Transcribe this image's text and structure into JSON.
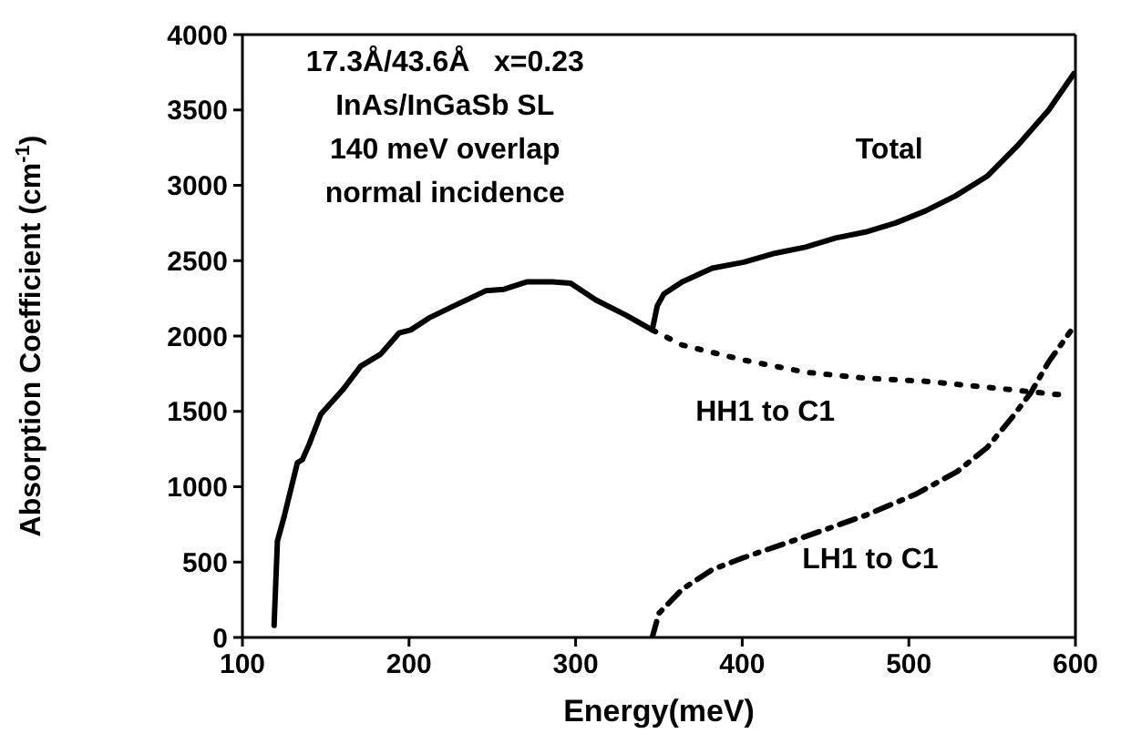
{
  "chart_data": {
    "type": "line",
    "xlabel": "Energy(meV)",
    "ylabel": "Absorption Coefficient (cm$^{-1}$)",
    "xlim": [
      100,
      600
    ],
    "xticks": [
      100,
      200,
      300,
      400,
      500,
      600
    ],
    "ylim": [
      0,
      4000
    ],
    "yticks": [
      0,
      500,
      1000,
      1500,
      2000,
      2500,
      3000,
      3500,
      4000
    ],
    "marker": "none",
    "annotations": [
      "17.3Å/43.6Å   x=0.23",
      "InAs/InGaSb SL",
      "140 meV overlap",
      "normal incidence"
    ],
    "series": [
      {
        "name": "Total",
        "color": "#000000",
        "line_style": "solid",
        "x": [
          119,
          121,
          125,
          133,
          136,
          140,
          147,
          160,
          171,
          183,
          194,
          201,
          212,
          227,
          246,
          257,
          271,
          286,
          297,
          312,
          330,
          346,
          349,
          353,
          364,
          382,
          401,
          420,
          438,
          456,
          474,
          492,
          510,
          528,
          547,
          565,
          584,
          599
        ],
        "values": [
          80,
          640,
          800,
          1160,
          1180,
          1280,
          1480,
          1640,
          1800,
          1880,
          2020,
          2040,
          2120,
          2200,
          2300,
          2310,
          2360,
          2360,
          2350,
          2240,
          2140,
          2040,
          2200,
          2280,
          2360,
          2450,
          2490,
          2550,
          2590,
          2650,
          2690,
          2750,
          2830,
          2930,
          3060,
          3260,
          3500,
          3740
        ]
      },
      {
        "name": "HH1 to C1",
        "color": "#000000",
        "line_style": "dotted",
        "x": [
          346,
          364,
          401,
          438,
          474,
          510,
          547,
          591
        ],
        "values": [
          2040,
          1940,
          1840,
          1760,
          1720,
          1700,
          1660,
          1610
        ]
      },
      {
        "name": "LH1 to C1",
        "color": "#000000",
        "line_style": "dashed",
        "x": [
          346,
          350,
          357,
          364,
          382,
          401,
          438,
          474,
          504,
          529,
          547,
          562,
          573,
          584,
          597
        ],
        "values": [
          0,
          160,
          240,
          320,
          450,
          530,
          670,
          810,
          950,
          1100,
          1260,
          1460,
          1620,
          1830,
          2030
        ]
      }
    ]
  }
}
